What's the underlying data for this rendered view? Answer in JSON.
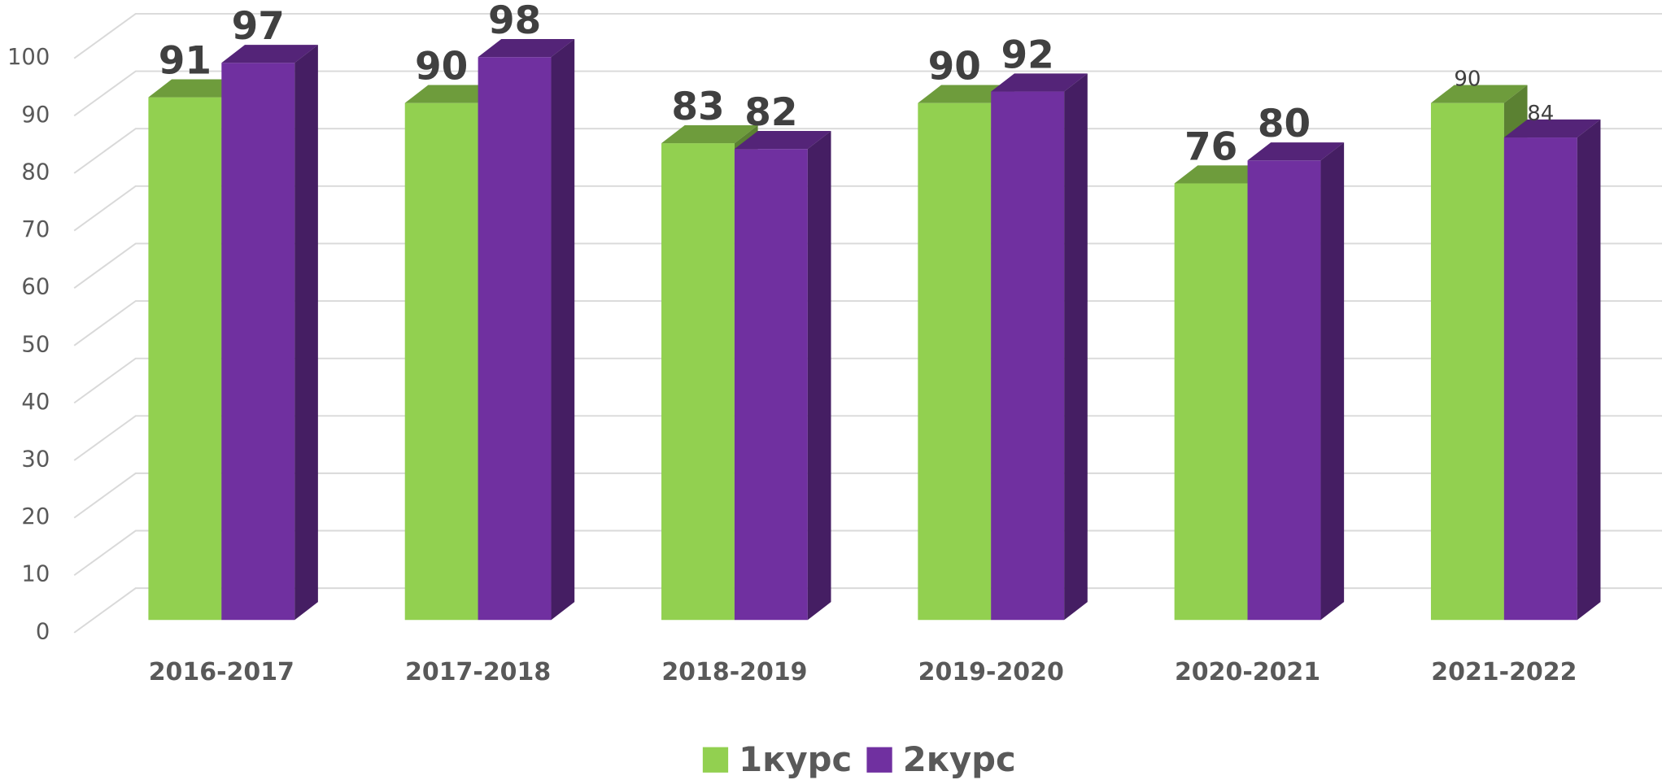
{
  "chart_data": {
    "type": "bar3d",
    "categories": [
      "2016-2017",
      "2017-2018",
      "2018-2019",
      "2019-2020",
      "2020-2021",
      "2021-2022"
    ],
    "series": [
      {
        "name": "1курс",
        "color": "#92d050",
        "values": [
          91,
          90,
          83,
          90,
          76,
          90
        ]
      },
      {
        "name": "2курс",
        "color": "#7030a0",
        "values": [
          97,
          98,
          82,
          92,
          80,
          84
        ]
      }
    ],
    "ylim": [
      0,
      100
    ],
    "yticks": [
      0,
      10,
      20,
      30,
      40,
      50,
      60,
      70,
      80,
      90,
      100
    ],
    "grid": true,
    "legend": "bottom"
  }
}
